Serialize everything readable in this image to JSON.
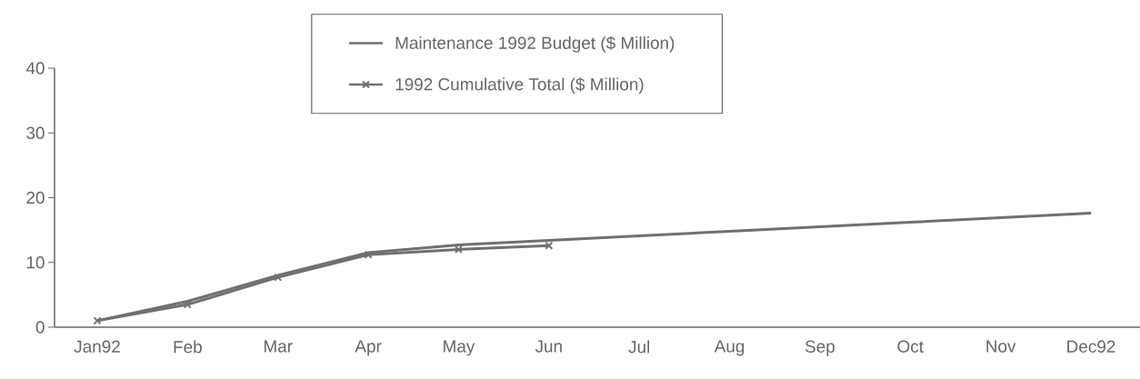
{
  "chart_data": {
    "type": "line",
    "categories": [
      "Jan92",
      "Feb",
      "Mar",
      "Apr",
      "May",
      "Jun",
      "Jul",
      "Aug",
      "Sep",
      "Oct",
      "Nov",
      "Dec92"
    ],
    "series": [
      {
        "name": "Maintenance 1992 Budget ($ Million)",
        "color": "#707070",
        "marker": "none",
        "values": [
          1,
          4,
          8,
          11.5,
          12.7,
          13.4,
          14.1,
          14.8,
          15.5,
          16.2,
          16.9,
          17.6
        ]
      },
      {
        "name": "1992 Cumulative Total ($ Million)",
        "color": "#707070",
        "marker": "cross",
        "values": [
          1,
          3.5,
          7.7,
          11.2,
          12,
          12.6,
          null,
          null,
          null,
          null,
          null,
          null
        ]
      }
    ],
    "ylim": [
      0,
      40
    ],
    "yticks": [
      0,
      10,
      20,
      30,
      40
    ],
    "grid": false,
    "legend": "top",
    "line_style": "solid"
  }
}
